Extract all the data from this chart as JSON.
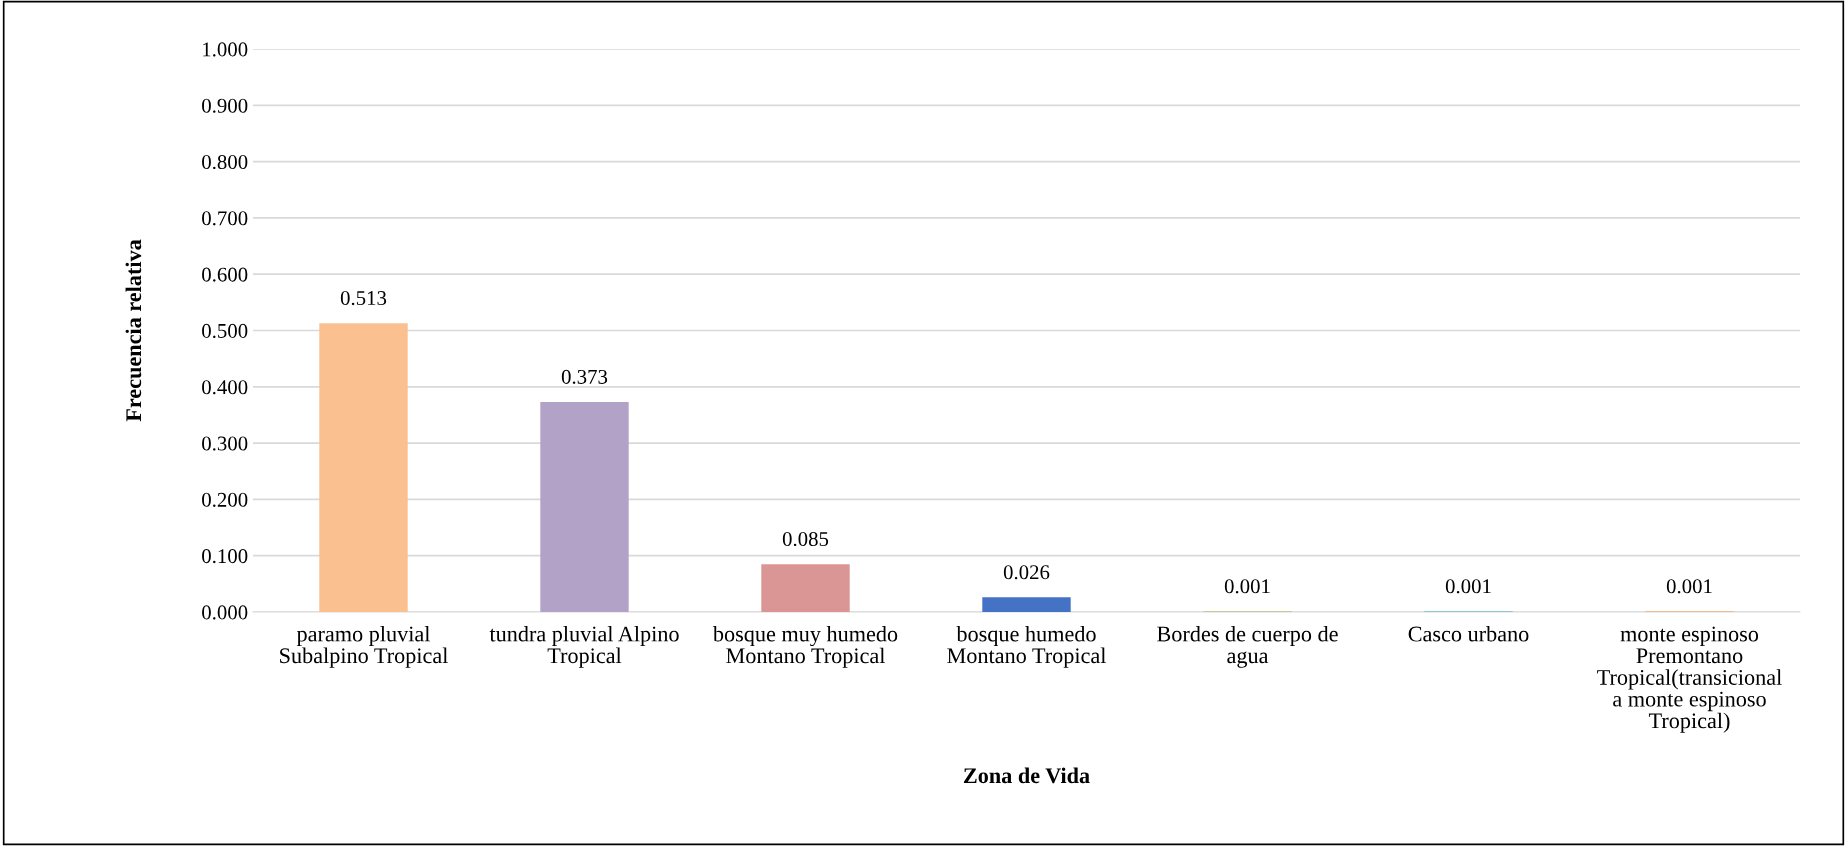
{
  "chart_data": {
    "type": "bar",
    "xlabel": "Zona de Vida",
    "ylabel": "Frecuencia relativa",
    "categories": [
      "paramo pluvial\nSubalpino Tropical",
      "tundra pluvial Alpino\nTropical",
      "bosque muy humedo\nMontano Tropical",
      "bosque humedo\nMontano Tropical",
      "Bordes de cuerpo de\nagua",
      "Casco urbano",
      "monte espinoso\nPremontano\nTropical(transicional\na monte espinoso\nTropical)"
    ],
    "values": [
      0.513,
      0.373,
      0.085,
      0.026,
      0.001,
      0.001,
      0.001
    ],
    "colors": [
      "#fac090",
      "#b3a2c7",
      "#d99694",
      "#4472c4",
      "#9bbb59",
      "#4bacc6",
      "#f79646"
    ],
    "ylim": [
      0,
      1.0
    ],
    "yticks": [
      {
        "value": 0,
        "label": "0.000"
      },
      {
        "value": 0.1,
        "label": "0.100"
      },
      {
        "value": 0.2,
        "label": "0.200"
      },
      {
        "value": 0.3,
        "label": "0.300"
      },
      {
        "value": 0.4,
        "label": "0.400"
      },
      {
        "value": 0.5,
        "label": "0.500"
      },
      {
        "value": 0.6,
        "label": "0.600"
      },
      {
        "value": 0.7,
        "label": "0.700"
      },
      {
        "value": 0.8,
        "label": "0.800"
      },
      {
        "value": 0.9,
        "label": "0.900"
      },
      {
        "value": 1.0,
        "label": "1.000"
      }
    ],
    "grid": "y",
    "data_labels": true,
    "legend": false
  }
}
